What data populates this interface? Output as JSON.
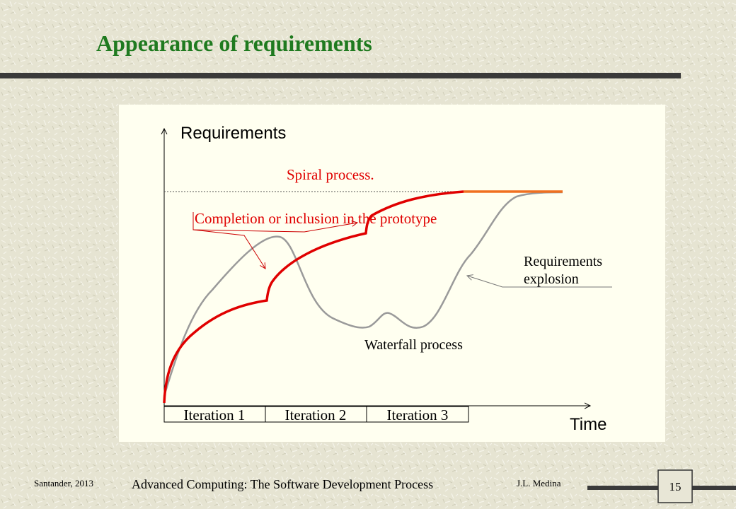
{
  "header": {
    "title": "Appearance of requirements"
  },
  "diagram": {
    "y_axis_label": "Requirements",
    "x_axis_label": "Time",
    "spiral_label": "Spiral process.",
    "completion_label": "Completion or inclusion in the prototype",
    "explosion_label": [
      "Requirements",
      "explosion"
    ],
    "waterfall_label": "Waterfall process",
    "iterations": [
      "Iteration 1",
      "Iteration 2",
      "Iteration 3"
    ]
  },
  "footer": {
    "left": "Santander, 2013",
    "center": "Advanced Computing: The Software Development Process",
    "right": "J.L. Medina",
    "page": "15"
  }
}
